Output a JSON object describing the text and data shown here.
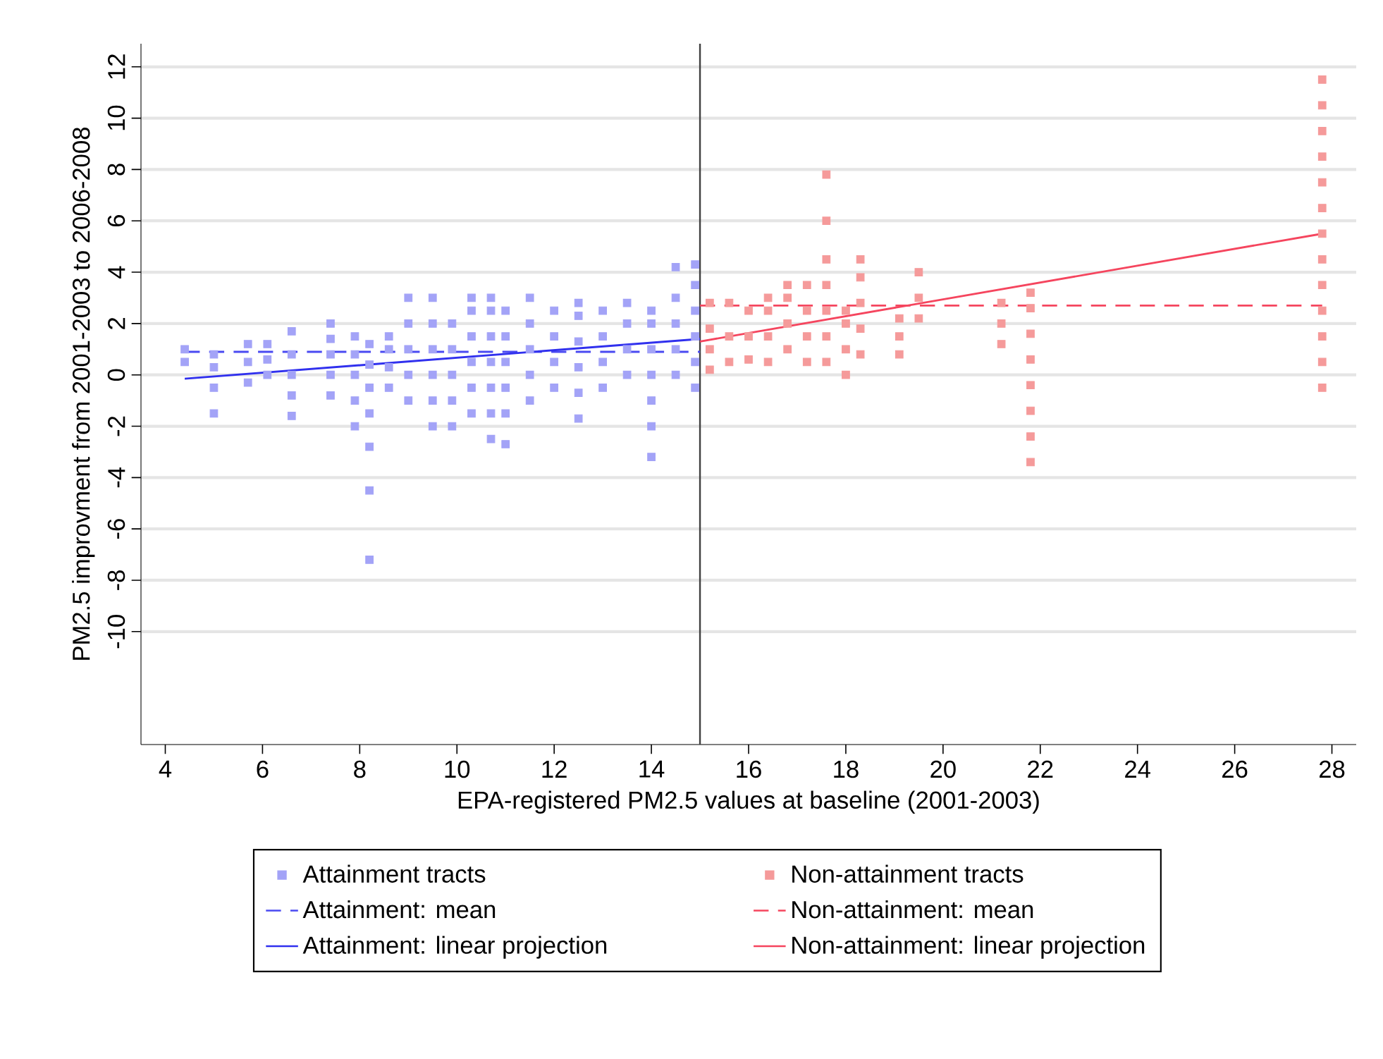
{
  "chart_data": {
    "type": "scatter",
    "xlabel": "EPA-registered PM2.5 values at baseline (2001-2003)",
    "ylabel": "PM2.5 improvment from 2001-2003 to 2006-2008",
    "xlim": [
      3.5,
      28.5
    ],
    "ylim": [
      -14.4,
      12.9
    ],
    "xticks": [
      4,
      6,
      8,
      10,
      12,
      14,
      16,
      18,
      20,
      22,
      24,
      26,
      28
    ],
    "yticks": [
      -10,
      -8,
      -6,
      -4,
      -2,
      0,
      2,
      4,
      6,
      8,
      10,
      12
    ],
    "grid": "y",
    "legend": "bottom",
    "ref_lines": [
      {
        "axis": "x",
        "value": 15,
        "color": "#404040"
      }
    ],
    "series": [
      {
        "name": "Attainment tracts",
        "type": "scatter",
        "color": "#a3a3f7",
        "x": [
          4.4,
          4.4,
          5.0,
          5.0,
          5.0,
          5.0,
          5.7,
          5.7,
          5.7,
          6.1,
          6.1,
          6.1,
          6.6,
          6.6,
          6.6,
          6.6,
          6.6,
          7.4,
          7.4,
          7.4,
          7.4,
          7.4,
          7.9,
          7.9,
          7.9,
          7.9,
          7.9,
          8.2,
          8.2,
          8.2,
          8.2,
          8.2,
          8.2,
          8.2,
          8.6,
          8.6,
          8.6,
          8.6,
          9.0,
          9.0,
          9.0,
          9.0,
          9.0,
          9.5,
          9.5,
          9.5,
          9.5,
          9.5,
          9.5,
          9.9,
          9.9,
          9.9,
          9.9,
          9.9,
          10.3,
          10.3,
          10.3,
          10.3,
          10.3,
          10.3,
          10.7,
          10.7,
          10.7,
          10.7,
          10.7,
          10.7,
          10.7,
          11.0,
          11.0,
          11.0,
          11.0,
          11.0,
          11.0,
          11.5,
          11.5,
          11.5,
          11.5,
          11.5,
          12.0,
          12.0,
          12.0,
          12.0,
          12.5,
          12.5,
          12.5,
          12.5,
          12.5,
          12.5,
          13.0,
          13.0,
          13.0,
          13.0,
          13.5,
          13.5,
          13.5,
          13.5,
          14.0,
          14.0,
          14.0,
          14.0,
          14.0,
          14.0,
          14.0,
          14.5,
          14.5,
          14.5,
          14.5,
          14.5,
          14.9,
          14.9,
          14.9,
          14.9,
          14.9,
          14.9
        ],
        "values": [
          0.5,
          1.0,
          -1.5,
          -0.5,
          0.3,
          0.8,
          -0.3,
          0.5,
          1.2,
          0,
          0.6,
          1.2,
          -1.6,
          -0.8,
          0,
          0.8,
          1.7,
          -0.8,
          0,
          0.8,
          1.4,
          2.0,
          -2.0,
          -1,
          0,
          0.8,
          1.5,
          -7.2,
          -4.5,
          -2.8,
          -1.5,
          -0.5,
          0.4,
          1.2,
          -0.5,
          0.3,
          1.0,
          1.5,
          -1.0,
          0,
          1,
          2,
          3.0,
          -2.0,
          -1,
          0,
          1,
          2,
          3.0,
          -2.0,
          -1,
          0,
          1,
          2.0,
          -1.5,
          -0.5,
          0.5,
          1.5,
          2.5,
          3.0,
          -2.5,
          -1.5,
          -0.5,
          0.5,
          1.5,
          2.5,
          3.0,
          -2.7,
          -1.5,
          -0.5,
          0.5,
          1.5,
          2.5,
          -1.0,
          0,
          1,
          2,
          3.0,
          -0.5,
          0.5,
          1.5,
          2.5,
          -1.7,
          -0.7,
          0.3,
          1.3,
          2.3,
          2.8,
          -0.5,
          0.5,
          1.5,
          2.5,
          0,
          1,
          2,
          2.8,
          -3.2,
          -2,
          -1,
          0,
          1,
          2,
          2.5,
          0,
          1,
          2,
          3,
          4.2,
          -0.5,
          0.5,
          1.5,
          2.5,
          3.5,
          4.3
        ]
      },
      {
        "name": "Non-attainment tracts",
        "type": "scatter",
        "color": "#f59a9a",
        "x": [
          15.2,
          15.2,
          15.2,
          15.2,
          15.6,
          15.6,
          15.6,
          16.0,
          16.0,
          16.0,
          16.4,
          16.4,
          16.4,
          16.4,
          16.8,
          16.8,
          16.8,
          16.8,
          17.2,
          17.2,
          17.2,
          17.2,
          17.6,
          17.6,
          17.6,
          17.6,
          17.6,
          17.6,
          17.6,
          18.0,
          18.0,
          18.0,
          18.0,
          18.3,
          18.3,
          18.3,
          18.3,
          18.3,
          19.1,
          19.1,
          19.1,
          19.5,
          19.5,
          19.5,
          21.2,
          21.2,
          21.2,
          21.8,
          21.8,
          21.8,
          21.8,
          21.8,
          21.8,
          21.8,
          21.8,
          27.8,
          27.8,
          27.8,
          27.8,
          27.8,
          27.8,
          27.8,
          27.8,
          27.8,
          27.8,
          27.8,
          27.8,
          27.8
        ],
        "values": [
          0.2,
          1,
          1.8,
          2.8,
          0.5,
          1.5,
          2.8,
          0.6,
          1.5,
          2.5,
          0.5,
          1.5,
          2.5,
          3.0,
          1,
          2,
          3,
          3.5,
          0.5,
          1.5,
          2.5,
          3.5,
          0.5,
          1.5,
          2.5,
          3.5,
          4.5,
          6,
          7.8,
          0,
          1,
          2,
          2.5,
          0.8,
          1.8,
          2.8,
          3.8,
          4.5,
          0.8,
          1.5,
          2.2,
          2.2,
          3.0,
          4.0,
          1.2,
          2,
          2.8,
          -3.4,
          -2.4,
          -1.4,
          -0.4,
          0.6,
          1.6,
          2.6,
          3.2,
          -0.5,
          0.5,
          1.5,
          2.5,
          3.5,
          4.5,
          5.5,
          6.5,
          7.5,
          8.5,
          9.5,
          10.5,
          11.5
        ]
      },
      {
        "name": "Attainment: mean",
        "type": "line",
        "line_style": "dashed",
        "color": "#4a4af2",
        "x": [
          4.4,
          15
        ],
        "values": [
          0.9,
          0.9
        ]
      },
      {
        "name": "Non-attainment: mean",
        "type": "line",
        "line_style": "dashed",
        "color": "#f5455e",
        "x": [
          15,
          27.8
        ],
        "values": [
          2.7,
          2.7
        ]
      },
      {
        "name": "Attainment: linear projection",
        "type": "line",
        "line_style": "solid",
        "color": "#3030ee",
        "x": [
          4.4,
          15
        ],
        "values": [
          -0.15,
          1.4
        ]
      },
      {
        "name": "Non-attainment: linear projection",
        "type": "line",
        "line_style": "solid",
        "color": "#f5455e",
        "x": [
          15,
          27.8
        ],
        "values": [
          1.3,
          5.5
        ]
      }
    ]
  }
}
